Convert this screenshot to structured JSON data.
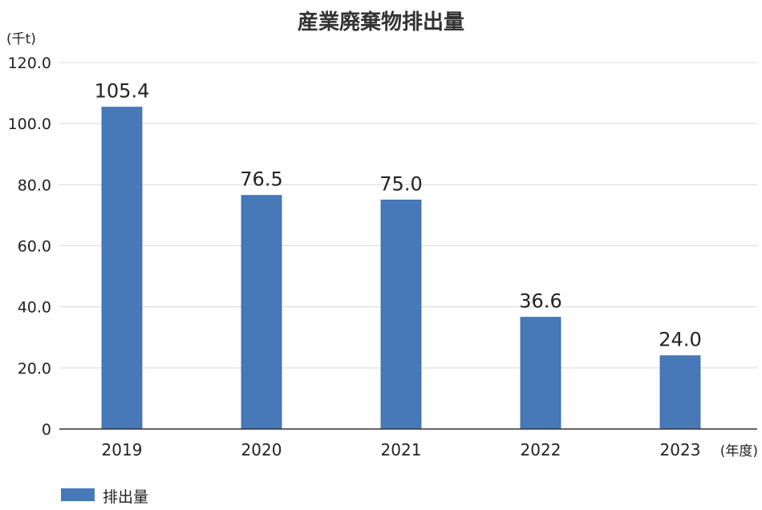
{
  "chart_data": {
    "type": "bar",
    "title": "産業廃棄物排出量",
    "ylabel": "(千t)",
    "xlabel": "(年度)",
    "categories": [
      "2019",
      "2020",
      "2021",
      "2022",
      "2023"
    ],
    "series": [
      {
        "name": "排出量",
        "values": [
          105.4,
          76.5,
          75.0,
          36.6,
          24.0
        ],
        "color": "#4778b8"
      }
    ],
    "data_labels": [
      "105.4",
      "76.5",
      "75.0",
      "36.6",
      "24.0"
    ],
    "yticks": [
      "0",
      "20.0",
      "40.0",
      "60.0",
      "80.0",
      "100.0",
      "120.0"
    ],
    "ylim": [
      0,
      120
    ],
    "grid": true,
    "legend_position": "bottom-left"
  }
}
